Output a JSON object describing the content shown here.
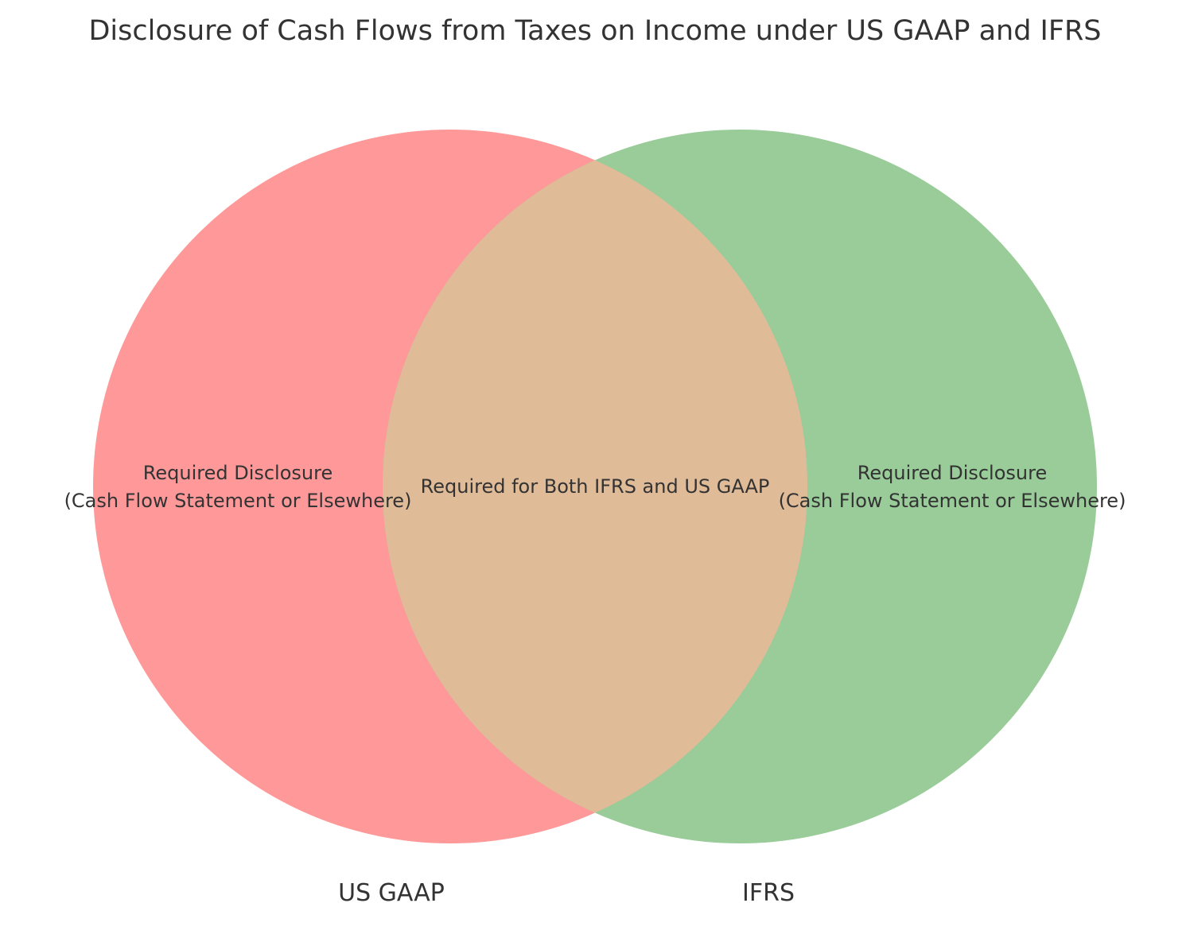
{
  "title": "Disclosure of Cash Flows from Taxes on Income under US GAAP and IFRS",
  "sets": [
    {
      "name": "US GAAP",
      "color": "#ff9999",
      "only_label": [
        "Required Disclosure",
        "(Cash Flow Statement or Elsewhere)"
      ]
    },
    {
      "name": "IFRS",
      "color": "#99cc99",
      "only_label": [
        "Required Disclosure",
        "(Cash Flow Statement or Elsewhere)"
      ]
    }
  ],
  "intersection": {
    "label": "Required for Both IFRS and US GAAP",
    "color": "#e0bb98"
  }
}
